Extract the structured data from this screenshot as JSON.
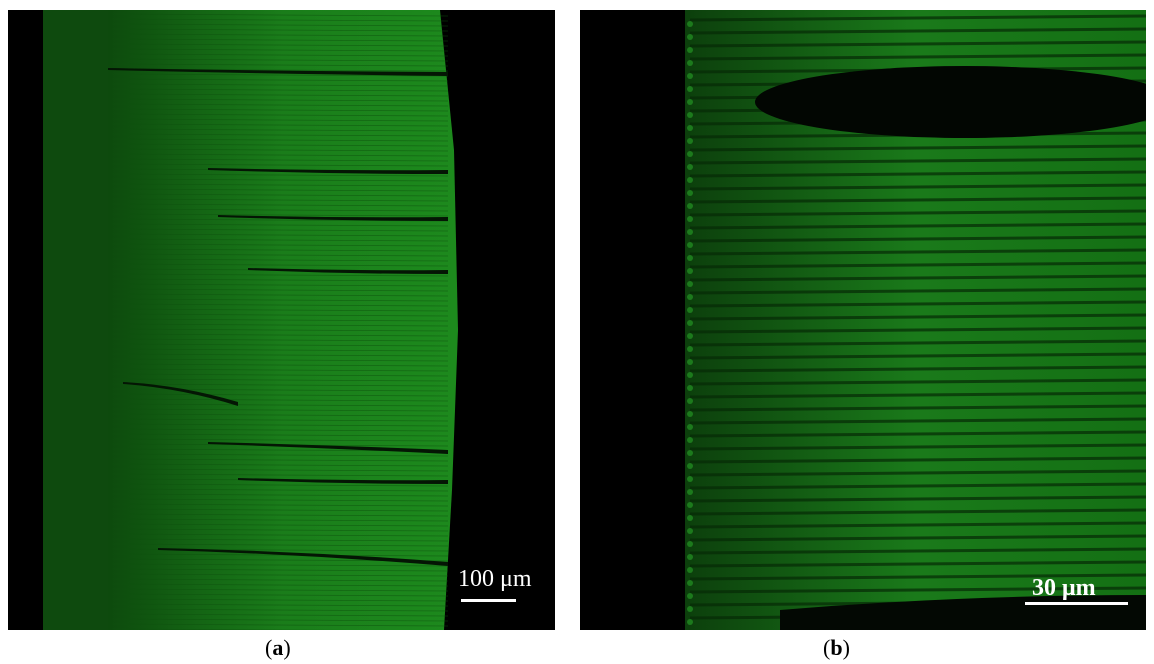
{
  "panels": [
    {
      "id": "a",
      "caption_open": "(",
      "caption_letter": "a",
      "caption_close": ")",
      "scale_label": "100 μm"
    },
    {
      "id": "b",
      "caption_open": "(",
      "caption_letter": "b",
      "caption_close": ")",
      "scale_label": "30 μm"
    }
  ],
  "colors": {
    "background": "#000000",
    "fluorescence": "#1f8a1f",
    "fluorescence_dark": "#0f4a0f",
    "scale_bar": "#ffffff"
  }
}
